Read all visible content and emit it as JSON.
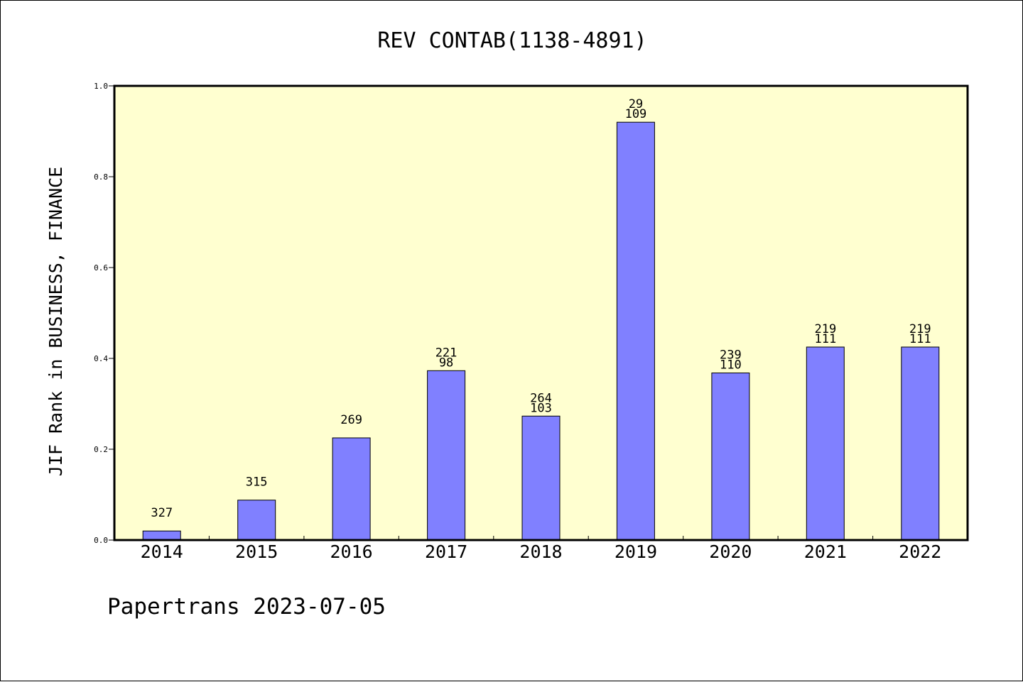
{
  "chart_data": {
    "type": "bar",
    "title": "REV CONTAB(1138-4891)",
    "xlabel": "",
    "ylabel": "JIF Rank in BUSINESS, FINANCE",
    "ylim": [
      0,
      1.0
    ],
    "yticks": [
      "0.0",
      "0.2",
      "0.4",
      "0.6",
      "0.8",
      "1.0"
    ],
    "ytick_values": [
      0,
      0.2,
      0.4,
      0.6,
      0.8,
      1.0
    ],
    "grid": false,
    "categories": [
      "2014",
      "2015",
      "2016",
      "2017",
      "2018",
      "2019",
      "2020",
      "2021",
      "2022"
    ],
    "values": [
      0.02,
      0.088,
      0.225,
      0.373,
      0.273,
      0.92,
      0.368,
      0.425,
      0.425
    ],
    "labels_top": [
      "327",
      "315",
      "269",
      "221",
      "264",
      "29",
      "239",
      "219",
      "219"
    ],
    "labels_bottom": [
      "",
      "",
      "",
      "98",
      "103",
      "109",
      "110",
      "111",
      "111"
    ],
    "colors": {
      "plot_background": "#ffffd0",
      "bar_fill": "#8080ff",
      "bar_stroke": "#000000"
    }
  },
  "footer": {
    "text": "Papertrans 2023-07-05"
  }
}
